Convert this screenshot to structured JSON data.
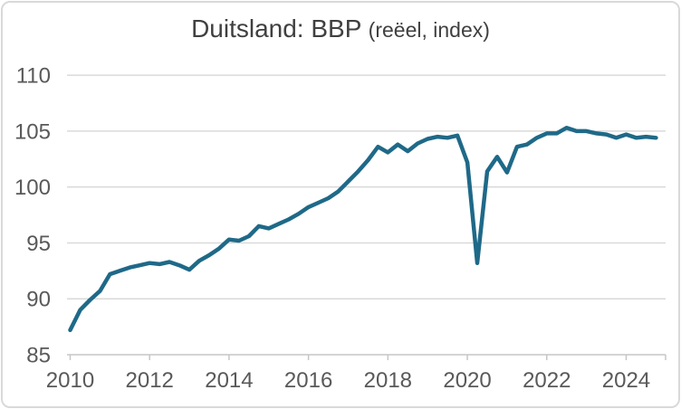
{
  "title": {
    "main": "Duitsland: BBP ",
    "sub": "(reëel, index)"
  },
  "chart_data": {
    "type": "line",
    "title": "Duitsland: BBP (reëel, index)",
    "xlabel": "",
    "ylabel": "",
    "frequency": "quarterly",
    "ylim": [
      85,
      110
    ],
    "grid": true,
    "legend": false,
    "y_ticks": [
      85,
      90,
      95,
      100,
      105,
      110
    ],
    "x_tick_labels": [
      "2010",
      "2012",
      "2014",
      "2016",
      "2018",
      "2020",
      "2022",
      "2024"
    ],
    "x": [
      "2010Q1",
      "2010Q2",
      "2010Q3",
      "2010Q4",
      "2011Q1",
      "2011Q2",
      "2011Q3",
      "2011Q4",
      "2012Q1",
      "2012Q2",
      "2012Q3",
      "2012Q4",
      "2013Q1",
      "2013Q2",
      "2013Q3",
      "2013Q4",
      "2014Q1",
      "2014Q2",
      "2014Q3",
      "2014Q4",
      "2015Q1",
      "2015Q2",
      "2015Q3",
      "2015Q4",
      "2016Q1",
      "2016Q2",
      "2016Q3",
      "2016Q4",
      "2017Q1",
      "2017Q2",
      "2017Q3",
      "2017Q4",
      "2018Q1",
      "2018Q2",
      "2018Q3",
      "2018Q4",
      "2019Q1",
      "2019Q2",
      "2019Q3",
      "2019Q4",
      "2020Q1",
      "2020Q2",
      "2020Q3",
      "2020Q4",
      "2021Q1",
      "2021Q2",
      "2021Q3",
      "2021Q4",
      "2022Q1",
      "2022Q2",
      "2022Q3",
      "2022Q4",
      "2023Q1",
      "2023Q2",
      "2023Q3",
      "2023Q4",
      "2024Q1",
      "2024Q2",
      "2024Q3",
      "2024Q4"
    ],
    "values": [
      87.2,
      89.0,
      89.9,
      90.7,
      92.2,
      92.5,
      92.8,
      93.0,
      93.2,
      93.1,
      93.3,
      93.0,
      92.6,
      93.4,
      93.9,
      94.5,
      95.3,
      95.2,
      95.6,
      96.5,
      96.3,
      96.7,
      97.1,
      97.6,
      98.2,
      98.6,
      99.0,
      99.6,
      100.5,
      101.4,
      102.4,
      103.6,
      103.1,
      103.8,
      103.2,
      103.9,
      104.3,
      104.5,
      104.4,
      104.6,
      102.2,
      93.2,
      101.4,
      102.7,
      101.3,
      103.6,
      103.8,
      104.4,
      104.8,
      104.8,
      105.3,
      105.0,
      105.0,
      104.8,
      104.7,
      104.4,
      104.7,
      104.4,
      104.5,
      104.4
    ],
    "colors": {
      "line": "#1F6988",
      "gridline": "#D9D9D9",
      "axis_line": "#C6C6C6",
      "tick_label": "#595959",
      "title": "#404040",
      "background": "#FFFFFF",
      "border": "#D9D9D9"
    }
  }
}
